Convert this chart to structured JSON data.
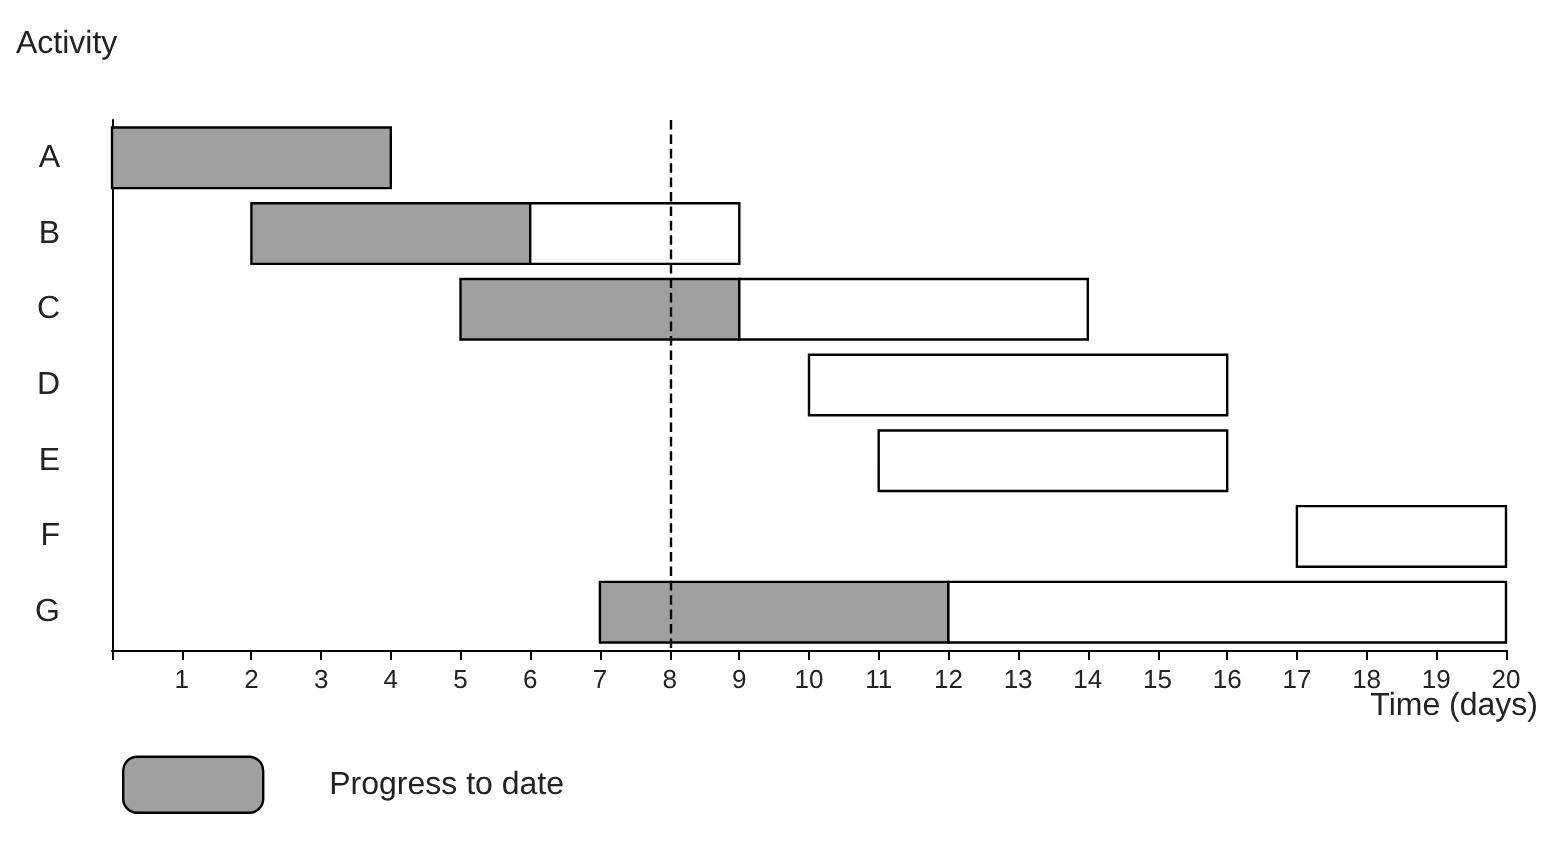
{
  "chart_data": {
    "type": "bar",
    "orientation": "horizontal",
    "xlabel": "Time (days)",
    "ylabel": "Activity",
    "categories": [
      "A",
      "B",
      "C",
      "D",
      "E",
      "F",
      "G"
    ],
    "series": [
      {
        "name": "Progress to date",
        "color": "#a0a0a0",
        "base": [
          0,
          2,
          5,
          null,
          null,
          null,
          7
        ],
        "values": [
          4,
          4,
          4,
          null,
          null,
          null,
          5
        ]
      },
      {
        "color": "#ffffff",
        "base": [
          null,
          6,
          9,
          10,
          11,
          17,
          12
        ],
        "values": [
          null,
          3,
          5,
          6,
          5,
          3,
          8
        ]
      }
    ],
    "xlim": [
      0,
      20
    ],
    "xticks": [
      {
        "value": 0,
        "label": null
      },
      1,
      2,
      3,
      4,
      5,
      6,
      7,
      8,
      9,
      10,
      11,
      12,
      13,
      14,
      15,
      16,
      17,
      18,
      19,
      20
    ],
    "ref_lines": [
      {
        "axis": "x",
        "value": 8,
        "color": "#000000",
        "line_style": "dashed"
      }
    ],
    "grid": false,
    "legend": "bottom left"
  }
}
